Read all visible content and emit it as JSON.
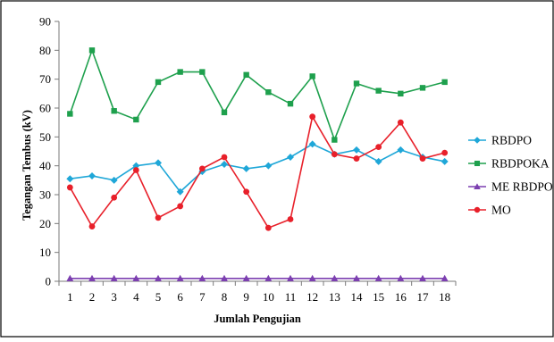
{
  "chart_data": {
    "type": "line",
    "xlabel": "Jumlah Pengujian",
    "ylabel": "Tegangan Tembus (kV)",
    "ylim": [
      0,
      90
    ],
    "yticks": [
      "0",
      "10",
      "20",
      "30",
      "40",
      "50",
      "60",
      "70",
      "80",
      "90"
    ],
    "x": [
      "1",
      "2",
      "3",
      "4",
      "5",
      "6",
      "7",
      "8",
      "9",
      "10",
      "11",
      "12",
      "13",
      "14",
      "15",
      "16",
      "17",
      "18"
    ],
    "grid": false,
    "legend_position": "right",
    "series": [
      {
        "name": "RBDPO",
        "color": "#1fa7d8",
        "marker": "diamond",
        "values": [
          35.5,
          36.5,
          35,
          40,
          41,
          31,
          38,
          40.5,
          39,
          40,
          43,
          47.5,
          44,
          45.5,
          41.5,
          45.5,
          43,
          41.5
        ]
      },
      {
        "name": "RBDPOKA",
        "color": "#1ea04d",
        "marker": "square",
        "values": [
          58,
          80,
          59,
          56,
          69,
          72.5,
          72.5,
          58.5,
          71.5,
          65.5,
          61.5,
          71,
          49,
          68.5,
          66,
          65,
          67,
          69
        ]
      },
      {
        "name": "ME RBDPO",
        "color": "#7c3fb0",
        "marker": "triangle",
        "values": [
          1,
          1,
          1,
          1,
          1,
          1,
          1,
          1,
          1,
          1,
          1,
          1,
          1,
          1,
          1,
          1,
          1,
          1
        ]
      },
      {
        "name": "MO",
        "color": "#e8202a",
        "marker": "circle",
        "values": [
          32.5,
          19,
          29,
          38.5,
          22,
          26,
          39,
          43,
          31,
          18.5,
          21.5,
          57,
          44,
          42.5,
          46.5,
          55,
          42.5,
          44.5
        ]
      }
    ]
  }
}
